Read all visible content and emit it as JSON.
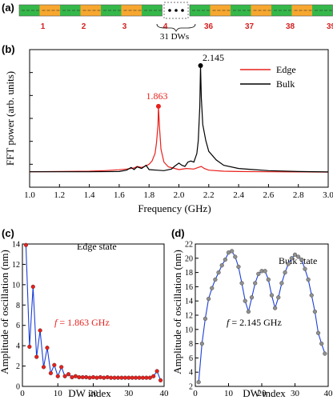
{
  "strip": {
    "panel_label": "(a)",
    "left_labels": [
      "1",
      "2",
      "3",
      "4"
    ],
    "right_labels": [
      "36",
      "37",
      "38",
      "39"
    ],
    "gap_text": "31 DWs",
    "colors": {
      "green": "#35b84a",
      "orange": "#f7a72f"
    }
  },
  "chart_data": [
    {
      "type": "line",
      "panel_label": "(b)",
      "xlabel": "Frequency (GHz)",
      "ylabel": "FFT power (arb. units)",
      "xlim": [
        1.0,
        3.0
      ],
      "xticks": [
        "1.0",
        "1.2",
        "1.4",
        "1.6",
        "1.8",
        "2.0",
        "2.2",
        "2.4",
        "2.6",
        "2.8",
        "3.0"
      ],
      "yticks_labeled": false,
      "legend": "top-right",
      "series": [
        {
          "name": "Edge",
          "color": "#e8201c",
          "peak": {
            "x": 1.863,
            "label": "1.863"
          },
          "x": [
            1.0,
            1.2,
            1.4,
            1.5,
            1.6,
            1.65,
            1.7,
            1.72,
            1.75,
            1.78,
            1.8,
            1.82,
            1.84,
            1.85,
            1.86,
            1.863,
            1.87,
            1.88,
            1.9,
            1.93,
            1.96,
            2.0,
            2.05,
            2.1,
            2.13,
            2.15,
            2.17,
            2.2,
            2.3,
            2.4,
            2.6,
            2.8,
            3.0
          ],
          "y": [
            0.01,
            0.012,
            0.015,
            0.02,
            0.028,
            0.035,
            0.045,
            0.06,
            0.05,
            0.065,
            0.08,
            0.11,
            0.18,
            0.28,
            0.45,
            0.62,
            0.42,
            0.22,
            0.1,
            0.055,
            0.045,
            0.03,
            0.04,
            0.035,
            0.05,
            0.06,
            0.04,
            0.025,
            0.015,
            0.012,
            0.01,
            0.008,
            0.007
          ]
        },
        {
          "name": "Bulk",
          "color": "#000000",
          "peak": {
            "x": 2.145,
            "label": "2.145"
          },
          "x": [
            1.0,
            1.2,
            1.4,
            1.6,
            1.65,
            1.68,
            1.7,
            1.72,
            1.75,
            1.78,
            1.8,
            1.85,
            1.9,
            1.95,
            1.97,
            2.0,
            2.02,
            2.04,
            2.06,
            2.08,
            2.1,
            2.12,
            2.13,
            2.14,
            2.145,
            2.15,
            2.16,
            2.18,
            2.2,
            2.25,
            2.3,
            2.4,
            2.5,
            2.6,
            2.8,
            3.0
          ],
          "y": [
            0.01,
            0.01,
            0.01,
            0.012,
            0.025,
            0.05,
            0.03,
            0.055,
            0.04,
            0.07,
            0.03,
            0.025,
            0.02,
            0.035,
            0.06,
            0.09,
            0.07,
            0.06,
            0.1,
            0.11,
            0.1,
            0.18,
            0.3,
            0.62,
            1.0,
            0.7,
            0.45,
            0.3,
            0.2,
            0.12,
            0.07,
            0.04,
            0.03,
            0.02,
            0.012,
            0.008
          ]
        }
      ]
    },
    {
      "type": "line",
      "panel_label": "(c)",
      "title": "Edge state",
      "annotation": {
        "f_symbol": "f",
        "text": "= 1.863 GHz"
      },
      "xlabel": "DW index",
      "ylabel": "Amplitude of oscillation (nm)",
      "xlim": [
        0,
        40
      ],
      "ylim": [
        0,
        14
      ],
      "xticks": [
        0,
        10,
        20,
        30,
        40
      ],
      "yticks": [
        0,
        2,
        4,
        6,
        8,
        10,
        12,
        14
      ],
      "marker_color": "#e8201c",
      "line_color": "#1c3fd6",
      "x": [
        1,
        2,
        3,
        4,
        5,
        6,
        7,
        8,
        9,
        10,
        11,
        12,
        13,
        14,
        15,
        16,
        17,
        18,
        19,
        20,
        21,
        22,
        23,
        24,
        25,
        26,
        27,
        28,
        29,
        30,
        31,
        32,
        33,
        34,
        35,
        36,
        37,
        38,
        39
      ],
      "y": [
        13.9,
        3.9,
        9.8,
        2.9,
        5.5,
        1.9,
        3.8,
        1.3,
        2.1,
        1.0,
        1.9,
        1.0,
        1.2,
        0.9,
        1.0,
        0.9,
        0.9,
        0.9,
        0.85,
        0.9,
        0.85,
        0.9,
        0.85,
        0.9,
        0.85,
        0.85,
        0.85,
        0.85,
        0.85,
        0.85,
        0.85,
        0.85,
        0.85,
        0.85,
        0.85,
        0.85,
        1.0,
        1.5,
        0.6
      ]
    },
    {
      "type": "line",
      "panel_label": "(d)",
      "title": "Bulk state",
      "annotation": {
        "f_symbol": "f",
        "text": "= 2.145 GHz"
      },
      "xlabel": "DW index",
      "ylabel": "Amplitude of oscillation (nm)",
      "xlim": [
        0,
        40
      ],
      "ylim": [
        2,
        22
      ],
      "xticks": [
        0,
        10,
        20,
        30,
        40
      ],
      "yticks": [
        2,
        4,
        6,
        8,
        10,
        12,
        14,
        16,
        18,
        20,
        22
      ],
      "marker_color": "#909090",
      "line_color": "#1c3fd6",
      "x": [
        1,
        2,
        3,
        4,
        5,
        6,
        7,
        8,
        9,
        10,
        11,
        12,
        13,
        14,
        15,
        16,
        17,
        18,
        19,
        20,
        21,
        22,
        23,
        24,
        25,
        26,
        27,
        28,
        29,
        30,
        31,
        32,
        33,
        34,
        35,
        36,
        37,
        38,
        39
      ],
      "y": [
        2.6,
        8.0,
        11.5,
        14.3,
        15.8,
        17.0,
        18.0,
        19.0,
        19.8,
        20.8,
        21.0,
        20.2,
        18.8,
        16.5,
        14.0,
        12.5,
        14.5,
        16.5,
        17.8,
        18.2,
        18.2,
        17.0,
        14.8,
        13.0,
        14.5,
        16.5,
        18.0,
        19.2,
        20.0,
        20.5,
        20.2,
        19.8,
        18.5,
        17.0,
        14.8,
        12.5,
        9.5,
        8.0,
        6.6
      ]
    }
  ]
}
